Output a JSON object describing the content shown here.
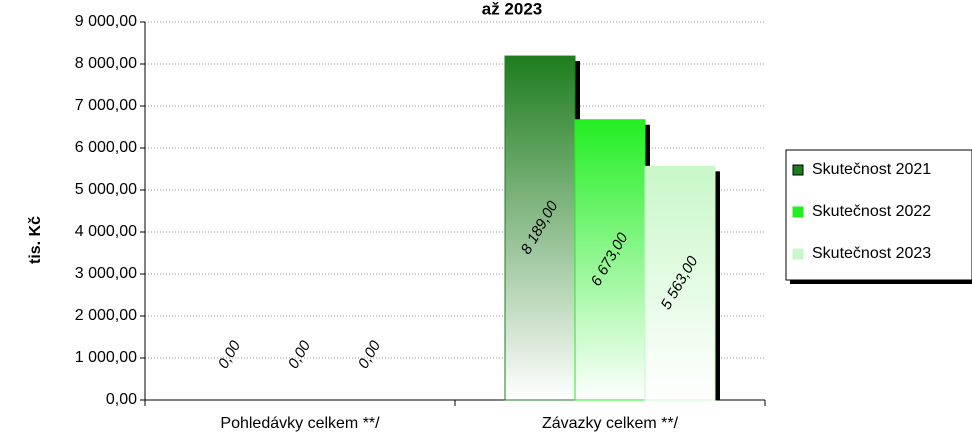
{
  "chart_data": {
    "type": "bar",
    "title": "až 2023",
    "y_label": "tis. Kč",
    "categories": [
      "Pohledávky celkem **/",
      "Závazky celkem **/"
    ],
    "series": [
      {
        "name": "Skutečnost 2021",
        "color": "#1e7d1e",
        "values": [
          0,
          8189
        ],
        "value_labels": [
          "0,00",
          "8 189,00"
        ]
      },
      {
        "name": "Skutečnost 2022",
        "color": "#22ee22",
        "values": [
          0,
          6673
        ],
        "value_labels": [
          "0,00",
          "6 673,00"
        ]
      },
      {
        "name": "Skutečnost 2023",
        "color": "#c8f8c8",
        "values": [
          0,
          5563
        ],
        "value_labels": [
          "0,00",
          "5 563,00"
        ]
      }
    ],
    "ylim": [
      0,
      9000
    ],
    "yticks": [
      {
        "value": 0,
        "label": "0,00"
      },
      {
        "value": 1000,
        "label": "1 000,00"
      },
      {
        "value": 2000,
        "label": "2 000,00"
      },
      {
        "value": 3000,
        "label": "3 000,00"
      },
      {
        "value": 4000,
        "label": "4 000,00"
      },
      {
        "value": 5000,
        "label": "5 000,00"
      },
      {
        "value": 6000,
        "label": "6 000,00"
      },
      {
        "value": 7000,
        "label": "7 000,00"
      },
      {
        "value": 8000,
        "label": "8 000,00"
      },
      {
        "value": 9000,
        "label": "9 000,00"
      }
    ],
    "grid": true,
    "legend": "right"
  }
}
